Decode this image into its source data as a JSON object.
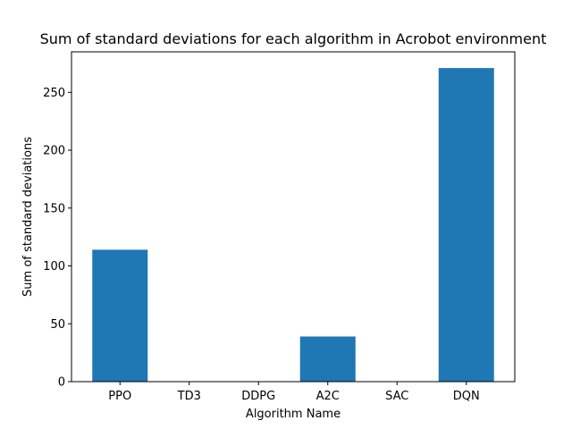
{
  "chart_data": {
    "type": "bar",
    "title": "Sum of standard deviations for each algorithm in Acrobot environment",
    "xlabel": "Algorithm Name",
    "ylabel": "Sum of standard deviations",
    "categories": [
      "PPO",
      "TD3",
      "DDPG",
      "A2C",
      "SAC",
      "DQN"
    ],
    "values": [
      114,
      0,
      0,
      39,
      0,
      271
    ],
    "ylim": [
      0,
      285
    ],
    "yticks": [
      0,
      50,
      100,
      150,
      200,
      250
    ],
    "grid": false,
    "legend": "none",
    "bar_color": "#1f77b4"
  }
}
